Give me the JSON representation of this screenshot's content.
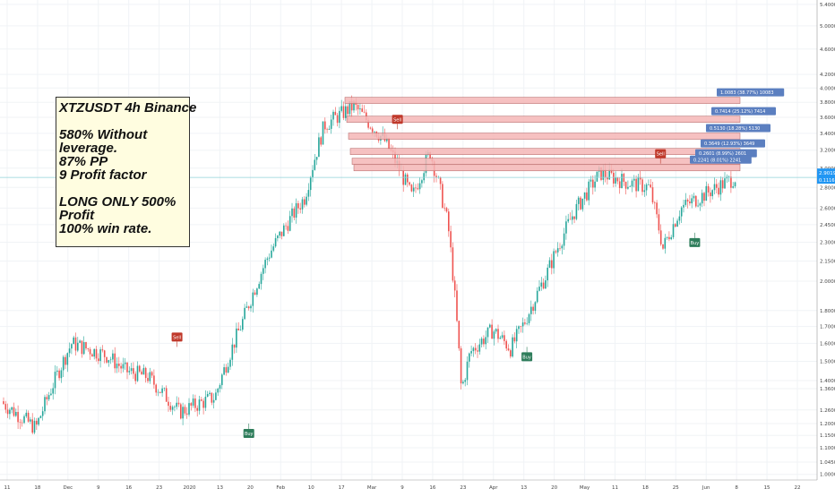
{
  "chart_data": {
    "type": "candlestick",
    "symbol": "XTZUSDT",
    "timeframe": "4h",
    "exchange": "Binance",
    "ylim": [
      0.98,
      5.45
    ],
    "price_ticks": [
      "5.4000",
      "5.0000",
      "4.6000",
      "4.2000",
      "4.0000",
      "3.8000",
      "3.6000",
      "3.4000",
      "3.2000",
      "3.0000",
      "2.8000",
      "2.6000",
      "2.4500",
      "2.3000",
      "2.1500",
      "2.0000",
      "1.8000",
      "1.7000",
      "1.6000",
      "1.5000",
      "1.4000",
      "1.3600",
      "1.2600",
      "1.2000",
      "1.1500",
      "1.1000",
      "1.0450",
      "1.0000"
    ],
    "last_price": {
      "value": "2.9019",
      "price": 2.9019,
      "sub": "0.1116"
    },
    "time_ticks": [
      "11",
      "18",
      "Dec",
      "9",
      "16",
      "23",
      "2020",
      "13",
      "20",
      "Feb",
      "10",
      "17",
      "Mar",
      "9",
      "16",
      "23",
      "Apr",
      "13",
      "20",
      "May",
      "11",
      "18",
      "25",
      "Jun",
      "8",
      "15",
      "22"
    ],
    "price_path": [
      [
        0,
        1.3
      ],
      [
        40,
        1.18
      ],
      [
        80,
        1.6
      ],
      [
        120,
        1.53
      ],
      [
        140,
        1.45
      ],
      [
        165,
        1.42
      ],
      [
        200,
        1.25
      ],
      [
        240,
        1.32
      ],
      [
        270,
        1.72
      ],
      [
        300,
        2.2
      ],
      [
        340,
        2.7
      ],
      [
        362,
        3.5
      ],
      [
        395,
        3.75
      ],
      [
        430,
        3.3
      ],
      [
        460,
        2.7
      ],
      [
        480,
        3.18
      ],
      [
        500,
        2.45
      ],
      [
        515,
        1.35
      ],
      [
        525,
        1.55
      ],
      [
        550,
        1.68
      ],
      [
        570,
        1.57
      ],
      [
        585,
        1.72
      ],
      [
        610,
        2.05
      ],
      [
        640,
        2.55
      ],
      [
        670,
        2.95
      ],
      [
        700,
        2.85
      ],
      [
        725,
        2.8
      ],
      [
        740,
        2.25
      ],
      [
        760,
        2.6
      ],
      [
        790,
        2.75
      ],
      [
        820,
        2.9
      ]
    ],
    "signals": [
      {
        "type": "buy",
        "label": "Buy",
        "x_frac": 0.298,
        "price": 1.2
      },
      {
        "type": "buy",
        "label": "Buy",
        "x_frac": 0.631,
        "price": 1.58
      },
      {
        "type": "buy",
        "label": "Buy",
        "x_frac": 0.832,
        "price": 2.38
      },
      {
        "type": "sell",
        "label": "Sell",
        "x_frac": 0.212,
        "price": 1.58
      },
      {
        "type": "sell",
        "label": "Sell",
        "x_frac": 0.476,
        "price": 3.45
      },
      {
        "type": "sell",
        "label": "Sell",
        "x_frac": 0.791,
        "price": 3.05
      }
    ],
    "targets": [
      {
        "label": "1.0083 (38.77%) 10083",
        "price": 3.82
      },
      {
        "label": "0.7414 (25.12%) 7414",
        "price": 3.57
      },
      {
        "label": "0.5130 (18.28%) 5130",
        "price": 3.36
      },
      {
        "label": "0.3649 (12.93%) 3649",
        "price": 3.18
      },
      {
        "label": "0.2601 (8.99%) 2601",
        "price": 3.07
      },
      {
        "label": "0.2241 (8.01%) 2241",
        "price": 3.0
      }
    ]
  },
  "note": {
    "title": "XTZUSDT 4h Binance",
    "line1": "580% Without",
    "line2": "leverage.",
    "line3": "87% PP",
    "line4": "9 Profit factor",
    "line5": "LONG ONLY 500%",
    "line6": "Profit",
    "line7": "100% win rate."
  },
  "colors": {
    "bull": "#26a69a",
    "bear": "#ef5350",
    "buy": "#2e7d5b",
    "sell": "#c0392b",
    "target": "#5b7fc0",
    "zone": "#f4b6b6",
    "crosshair": "#8fd3d8"
  }
}
